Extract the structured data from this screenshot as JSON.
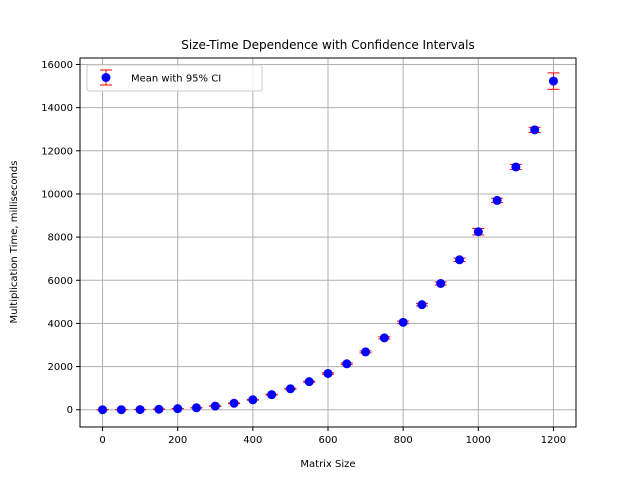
{
  "chart_data": {
    "type": "scatter",
    "title": "Size-Time Dependence with Confidence Intervals",
    "xlabel": "Matrix Size",
    "ylabel": "Multiplication Time, milliseconds",
    "xlim": [
      -60,
      1260
    ],
    "ylim": [
      -800,
      16300
    ],
    "xticks": [
      0,
      200,
      400,
      600,
      800,
      1000,
      1200
    ],
    "yticks": [
      0,
      2000,
      4000,
      6000,
      8000,
      10000,
      12000,
      14000,
      16000
    ],
    "xtick_labels": [
      "0",
      "200",
      "400",
      "600",
      "800",
      "1000",
      "1200"
    ],
    "ytick_labels": [
      "0",
      "2000",
      "4000",
      "6000",
      "8000",
      "10000",
      "12000",
      "14000",
      "16000"
    ],
    "grid": true,
    "legend": {
      "position": "top-left",
      "label": "Mean with 95% CI"
    },
    "colors": {
      "marker": "#0000ff",
      "errorbar": "#ff0000",
      "grid": "#b0b0b0"
    },
    "series": [
      {
        "name": "Mean with 95% CI",
        "x": [
          0,
          50,
          100,
          150,
          200,
          250,
          300,
          350,
          400,
          450,
          500,
          550,
          600,
          650,
          700,
          750,
          800,
          850,
          900,
          950,
          1000,
          1050,
          1100,
          1150,
          1200
        ],
        "y": [
          0,
          2,
          8,
          25,
          50,
          90,
          170,
          300,
          460,
          700,
          970,
          1300,
          1680,
          2130,
          2680,
          3330,
          4050,
          4870,
          5850,
          6950,
          8250,
          9700,
          11250,
          12970,
          15230
        ],
        "ci": [
          5,
          5,
          5,
          10,
          10,
          10,
          15,
          15,
          20,
          20,
          25,
          30,
          35,
          40,
          45,
          50,
          60,
          60,
          70,
          80,
          150,
          100,
          120,
          120,
          380
        ]
      }
    ]
  }
}
